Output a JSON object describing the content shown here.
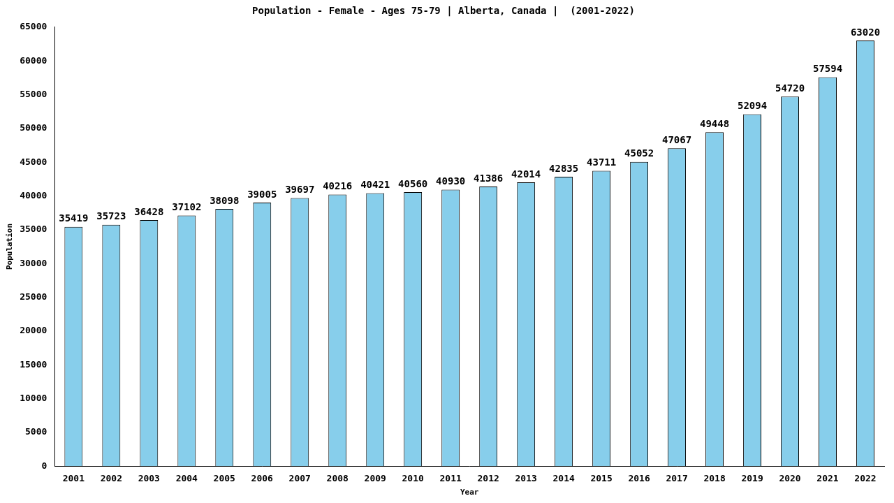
{
  "chart_data": {
    "type": "bar",
    "title": "Population - Female - Ages 75-79 | Alberta, Canada |  (2001-2022)",
    "x_label": "Year",
    "y_label": "Population",
    "categories": [
      "2001",
      "2002",
      "2003",
      "2004",
      "2005",
      "2006",
      "2007",
      "2008",
      "2009",
      "2010",
      "2011",
      "2012",
      "2013",
      "2014",
      "2015",
      "2016",
      "2017",
      "2018",
      "2019",
      "2020",
      "2021",
      "2022"
    ],
    "values": [
      35419,
      35723,
      36428,
      37102,
      38098,
      39005,
      39697,
      40216,
      40421,
      40560,
      40930,
      41386,
      42014,
      42835,
      43711,
      45052,
      47067,
      49448,
      52094,
      54720,
      57594,
      63020
    ],
    "color": "#87ceeb",
    "ylim": [
      0,
      65000
    ],
    "yticks": [
      0,
      5000,
      10000,
      15000,
      20000,
      25000,
      30000,
      35000,
      40000,
      45000,
      50000,
      55000,
      60000,
      65000
    ],
    "grid": false,
    "data_labels": true
  }
}
